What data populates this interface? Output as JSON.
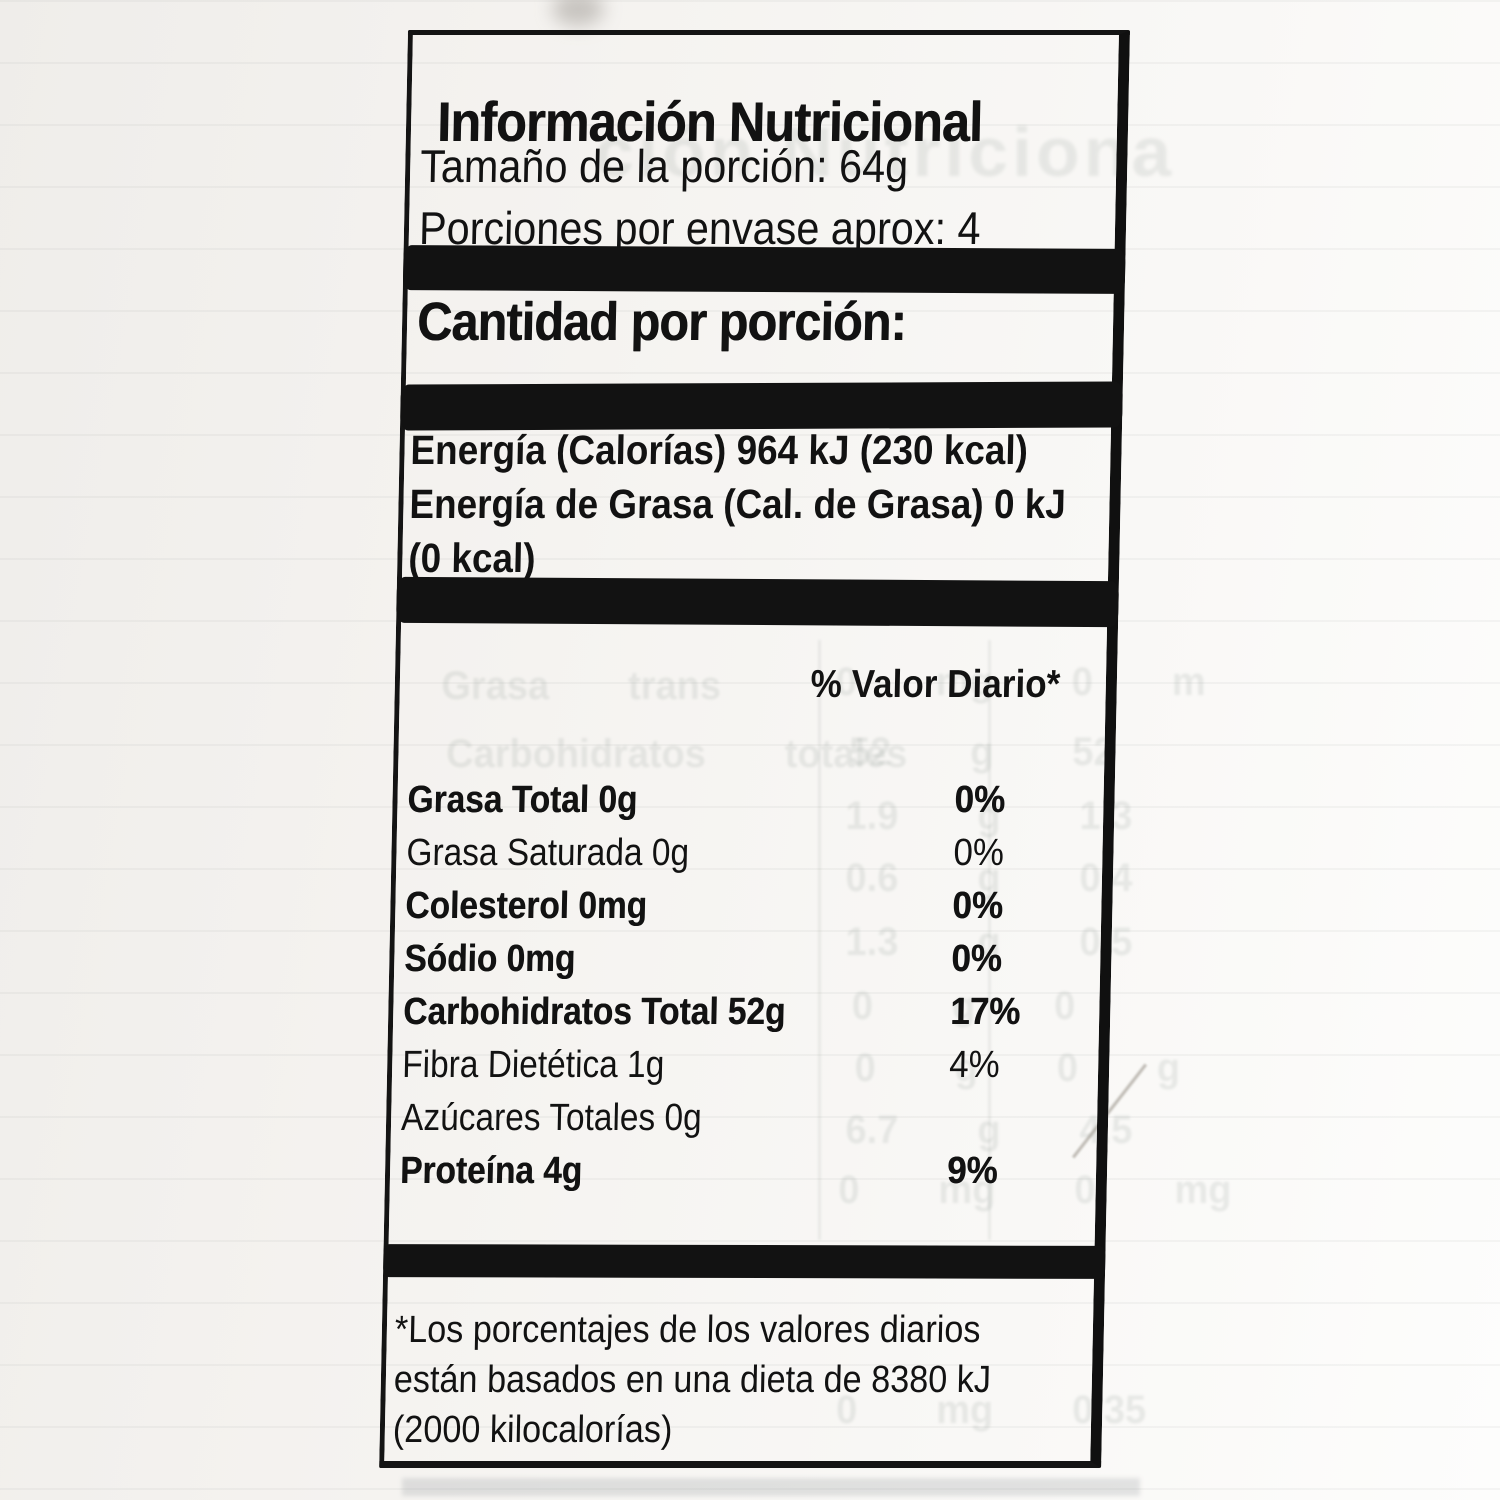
{
  "colors": {
    "ink": "#121212",
    "paper": "#f4f2ef",
    "ghost_ink": "#8a958f"
  },
  "label": {
    "title": "Información Nutricional",
    "serving_size": "Tamaño de la porción: 64g",
    "servings_per_container": "Porciones por envase aprox: 4",
    "amount_per_serving_heading": "Cantidad por porción:",
    "energy_lines": [
      "Energía (Calorías) 964 kJ (230 kcal)",
      "Energía de Grasa (Cal. de Grasa) 0 kJ",
      "(0 kcal)"
    ],
    "daily_value_header": "% Valor Diario*",
    "nutrients": [
      {
        "name": "Grasa Total 0g",
        "daily_value": "0%",
        "emphasis": "strong"
      },
      {
        "name": "Grasa Saturada 0g",
        "daily_value": "0%",
        "emphasis": "normal"
      },
      {
        "name": "Colesterol 0mg",
        "daily_value": "0%",
        "emphasis": "strong"
      },
      {
        "name": "Sódio 0mg",
        "daily_value": "0%",
        "emphasis": "strong"
      },
      {
        "name": "Carbohidratos Total 52g",
        "daily_value": "17%",
        "emphasis": "strong"
      },
      {
        "name": "Fibra Dietética 1g",
        "daily_value": "4%",
        "emphasis": "normal"
      },
      {
        "name": "Azúcares Totales 0g",
        "daily_value": "",
        "emphasis": "normal"
      },
      {
        "name": "Proteína 4g",
        "daily_value": "9%",
        "emphasis": "strong"
      }
    ],
    "footnote_lines": [
      "*Los porcentajes de los valores diarios",
      "están basados en una dieta de 8380 kJ",
      "(2000 kilocalorías)"
    ]
  },
  "ghost": {
    "heading": "ción Nutriciona",
    "fragments": [
      "Grasa trans",
      "0 mg 0 m",
      "Carbohidratos totales",
      "52 g 52",
      "1.9 g 1.3",
      "0.6 g 0.4",
      "1.3 g 0.5",
      "0 g 0",
      "0 g 0 g",
      "6.7 g 4.5",
      "0 mg 0 mg",
      "0 mg 0.35"
    ]
  }
}
